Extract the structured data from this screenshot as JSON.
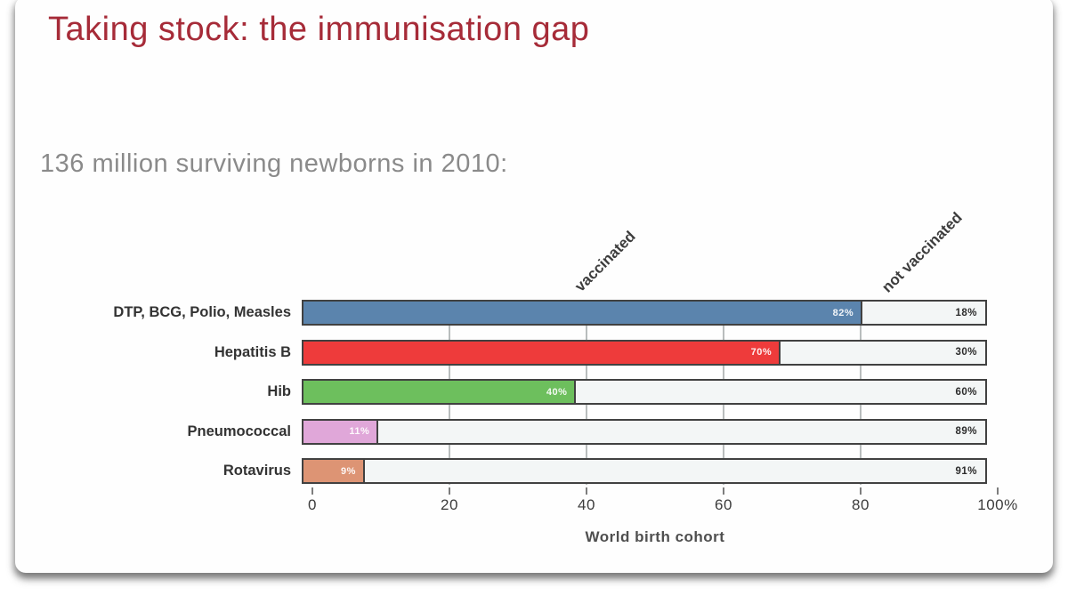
{
  "slide": {
    "title": "Taking stock: the immunisation gap",
    "title_color": "#a62b38",
    "subtitle": "136 million surviving newborns in 2010:"
  },
  "chart_data": {
    "type": "bar",
    "orientation": "horizontal",
    "stacked": true,
    "categories": [
      "DTP, BCG, Polio, Measles",
      "Hepatitis B",
      "Hib",
      "Pneumococcal",
      "Rotavirus"
    ],
    "series": [
      {
        "name": "vaccinated",
        "values": [
          82,
          70,
          40,
          11,
          9
        ]
      },
      {
        "name": "not vaccinated",
        "values": [
          18,
          30,
          60,
          89,
          91
        ]
      }
    ],
    "column_headers": [
      "vaccinated",
      "not vaccinated"
    ],
    "bar_colors": [
      "#5b84ad",
      "#ee3b3b",
      "#6dbf5d",
      "#e0a7d9",
      "#dd9474"
    ],
    "track_color": "#f3f6f6",
    "value_suffix": "%",
    "xlabel": "World birth cohort",
    "x_ticks": [
      "0",
      "20",
      "40",
      "60",
      "80",
      "100%"
    ],
    "xlim": [
      0,
      100
    ],
    "gridlines_at": [
      20,
      40,
      60,
      80
    ],
    "grid": true,
    "legend_position": "none"
  }
}
